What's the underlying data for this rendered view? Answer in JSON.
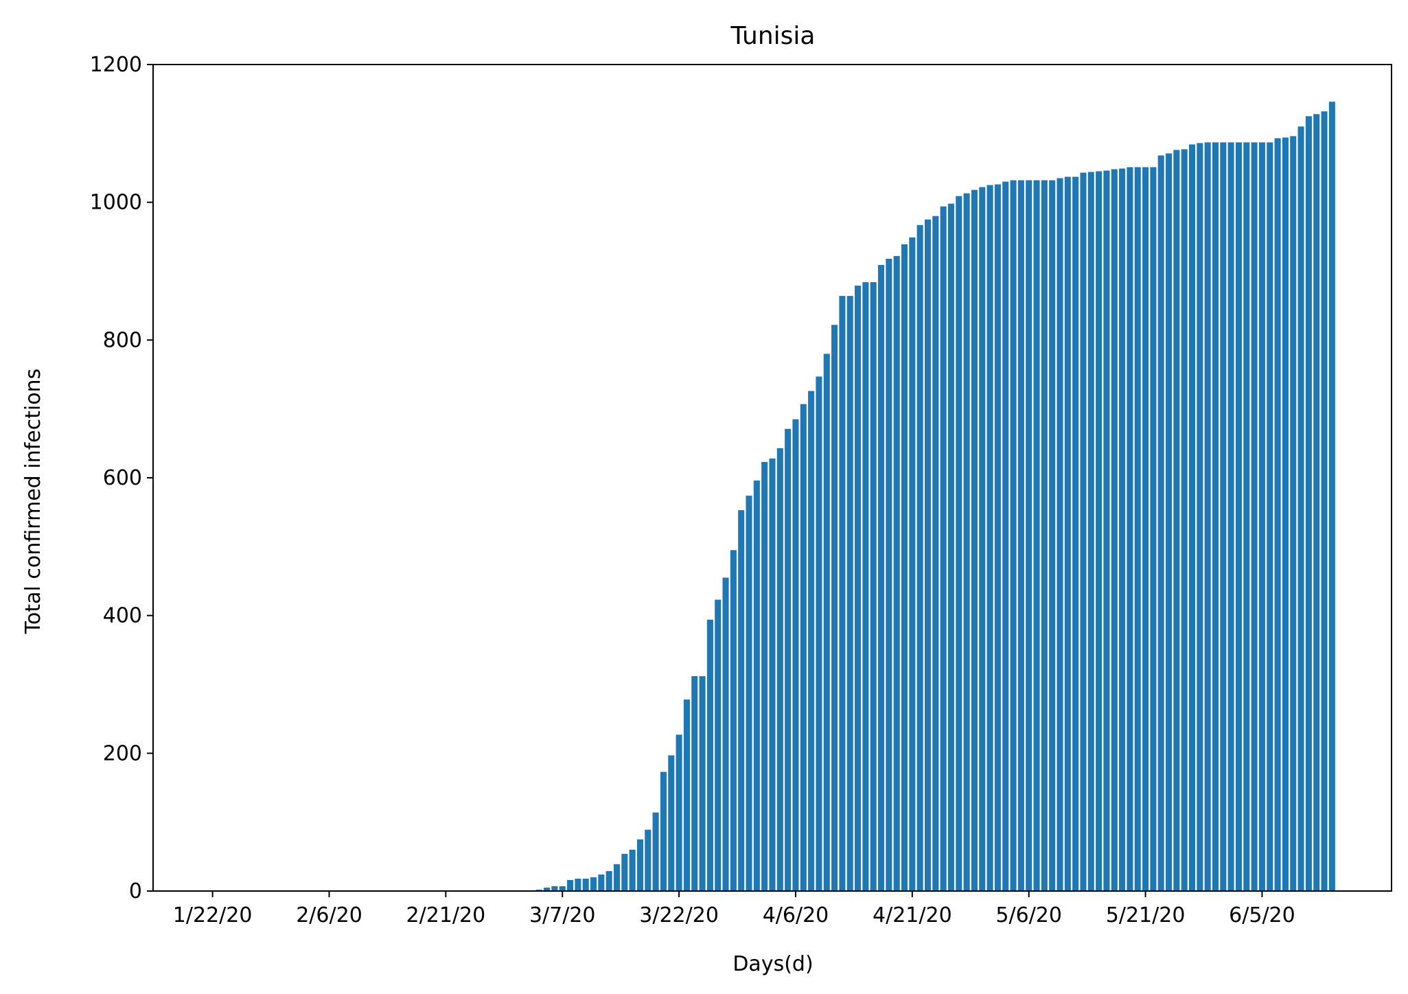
{
  "chart_data": {
    "type": "bar",
    "title": "Tunisia",
    "xlabel": "Days(d)",
    "ylabel": "Total confirmed infections",
    "ylim": [
      0,
      1200
    ],
    "yticks": [
      0,
      200,
      400,
      600,
      800,
      1000,
      1200
    ],
    "x_tick_labels": [
      {
        "date": "2020-01-22",
        "label": "1/22/20"
      },
      {
        "date": "2020-02-06",
        "label": "2/6/20"
      },
      {
        "date": "2020-02-21",
        "label": "2/21/20"
      },
      {
        "date": "2020-03-07",
        "label": "3/7/20"
      },
      {
        "date": "2020-03-22",
        "label": "3/22/20"
      },
      {
        "date": "2020-04-06",
        "label": "4/6/20"
      },
      {
        "date": "2020-04-21",
        "label": "4/21/20"
      },
      {
        "date": "2020-05-06",
        "label": "5/6/20"
      },
      {
        "date": "2020-05-21",
        "label": "5/21/20"
      },
      {
        "date": "2020-06-05",
        "label": "6/5/20"
      }
    ],
    "color": "#1f77b4",
    "grid": false,
    "legend": "none",
    "series": [
      {
        "start_date": "2020-01-22",
        "values": [
          0,
          0,
          0,
          0,
          0,
          0,
          0,
          0,
          0,
          0,
          0,
          0,
          0,
          0,
          0,
          0,
          0,
          0,
          0,
          0,
          0,
          0,
          0,
          0,
          0,
          0,
          0,
          0,
          0,
          0,
          0,
          0,
          0,
          0,
          0,
          0,
          0,
          0,
          0,
          0,
          1,
          1,
          2,
          5,
          7,
          7,
          16,
          18,
          18,
          20,
          24,
          29,
          39,
          54,
          60,
          75,
          89,
          114,
          173,
          197,
          227,
          278,
          312,
          312,
          394,
          423,
          455,
          495,
          553,
          574,
          596,
          623,
          628,
          643,
          671,
          685,
          707,
          726,
          747,
          780,
          822,
          864,
          864,
          879,
          884,
          884,
          909,
          918,
          922,
          939,
          949,
          967,
          975,
          980,
          994,
          998,
          1009,
          1013,
          1018,
          1022,
          1025,
          1026,
          1030,
          1032,
          1032,
          1032,
          1032,
          1032,
          1032,
          1035,
          1037,
          1037,
          1043,
          1044,
          1045,
          1046,
          1048,
          1049,
          1051,
          1051,
          1051,
          1051,
          1068,
          1071,
          1076,
          1077,
          1084,
          1086,
          1087,
          1087,
          1087,
          1087,
          1087,
          1087,
          1087,
          1087,
          1087,
          1093,
          1094,
          1096,
          1110,
          1125,
          1128,
          1132,
          1146
        ]
      }
    ]
  }
}
